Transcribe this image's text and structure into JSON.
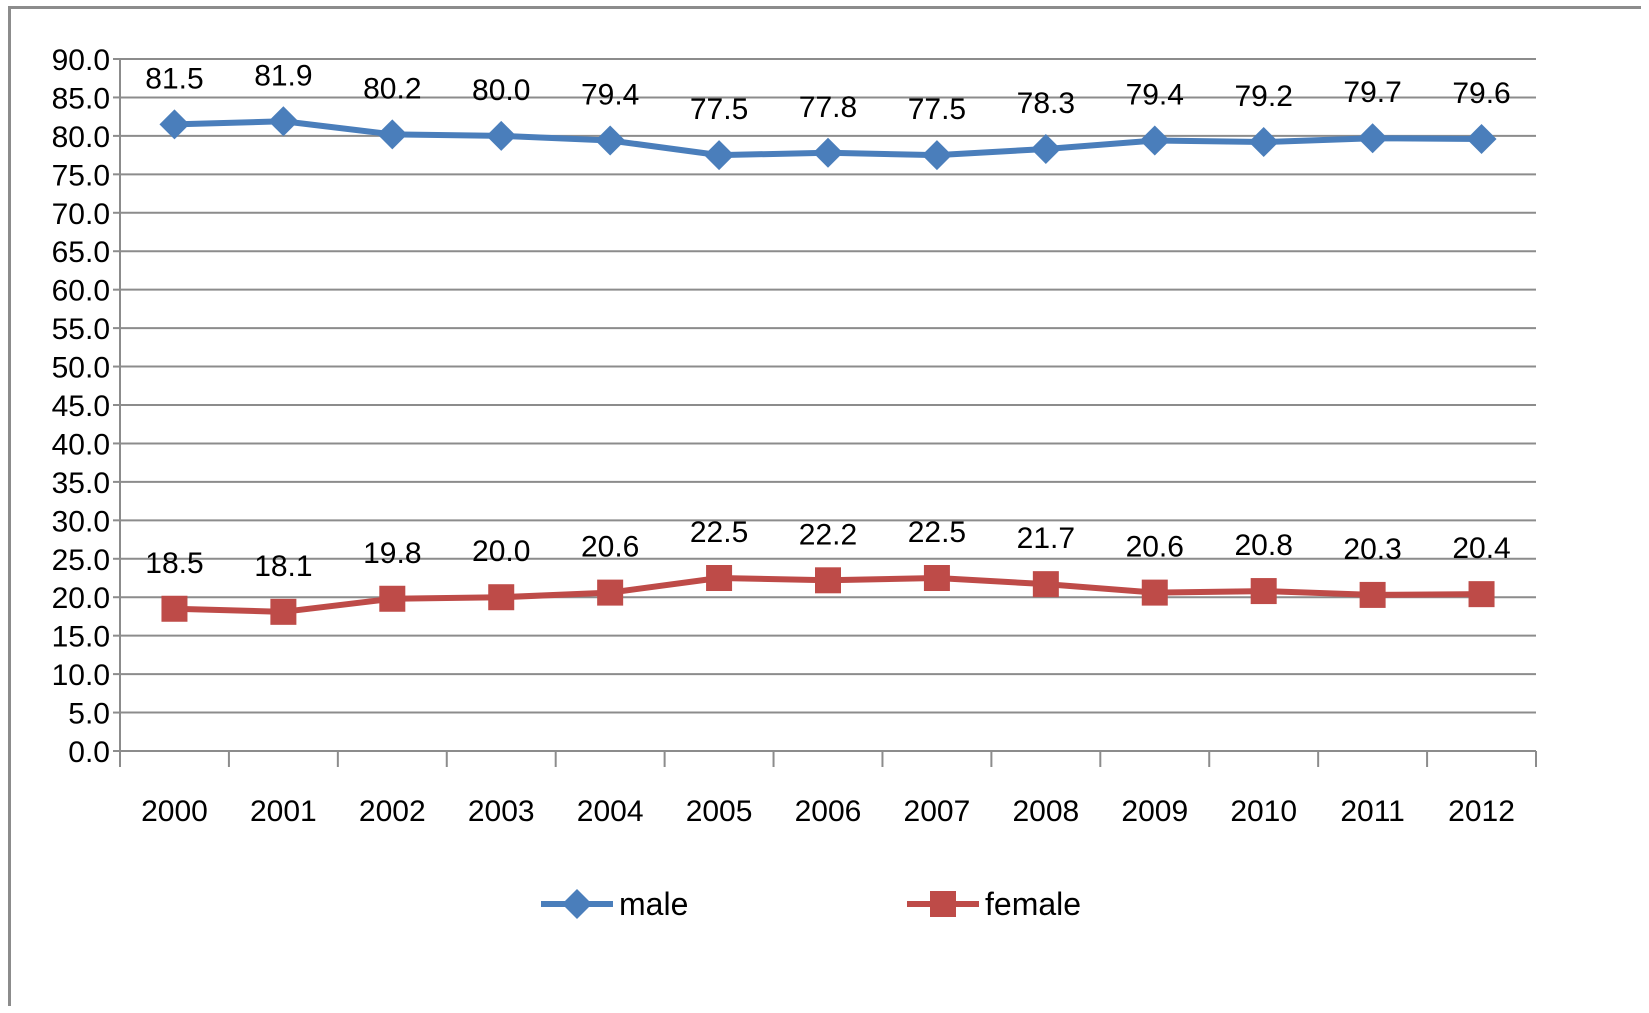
{
  "chart_data": {
    "type": "line",
    "title": "",
    "xlabel": "",
    "ylabel": "",
    "categories": [
      "2000",
      "2001",
      "2002",
      "2003",
      "2004",
      "2005",
      "2006",
      "2007",
      "2008",
      "2009",
      "2010",
      "2011",
      "2012"
    ],
    "ylim": [
      0,
      90
    ],
    "ytick_step": 5,
    "ytick_labels": [
      "0.0",
      "5.0",
      "10.0",
      "15.0",
      "20.0",
      "25.0",
      "30.0",
      "35.0",
      "40.0",
      "45.0",
      "50.0",
      "55.0",
      "60.0",
      "65.0",
      "70.0",
      "75.0",
      "80.0",
      "85.0",
      "90.0"
    ],
    "grid": true,
    "legend_position": "bottom",
    "series": [
      {
        "name": "male",
        "color": "#4a7ebb",
        "marker": "diamond",
        "values": [
          81.5,
          81.9,
          80.2,
          80.0,
          79.4,
          77.5,
          77.8,
          77.5,
          78.3,
          79.4,
          79.2,
          79.7,
          79.6
        ],
        "labels": [
          "81.5",
          "81.9",
          "80.2",
          "80.0",
          "79.4",
          "77.5",
          "77.8",
          "77.5",
          "78.3",
          "79.4",
          "79.2",
          "79.7",
          "79.6"
        ]
      },
      {
        "name": "female",
        "color": "#be4b48",
        "marker": "square",
        "values": [
          18.5,
          18.1,
          19.8,
          20.0,
          20.6,
          22.5,
          22.2,
          22.5,
          21.7,
          20.6,
          20.8,
          20.3,
          20.4
        ],
        "labels": [
          "18.5",
          "18.1",
          "19.8",
          "20.0",
          "20.6",
          "22.5",
          "22.2",
          "22.5",
          "21.7",
          "20.6",
          "20.8",
          "20.3",
          "20.4"
        ]
      }
    ]
  }
}
